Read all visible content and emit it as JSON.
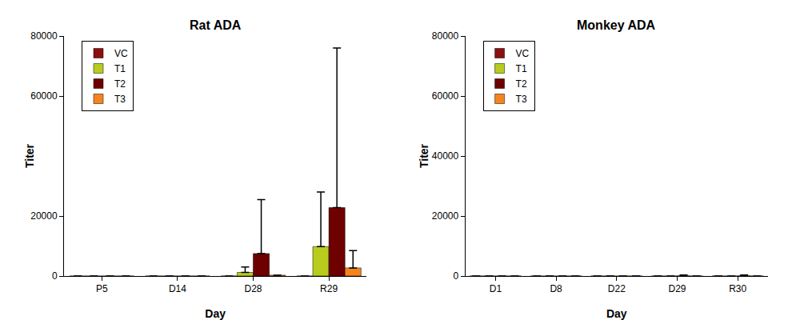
{
  "chart_data": [
    {
      "type": "bar",
      "title": "Rat ADA",
      "x_label": "Day",
      "y_label": "Titer",
      "categories": [
        "P5",
        "D14",
        "D28",
        "R29"
      ],
      "series": [
        {
          "name": "VC",
          "color": "#8b0f0f",
          "values": [
            0,
            0,
            0,
            0
          ],
          "errors": [
            0,
            0,
            0,
            0
          ]
        },
        {
          "name": "T1",
          "color": "#b8cc1e",
          "values": [
            0,
            0,
            1200,
            9800
          ],
          "errors": [
            0,
            0,
            1800,
            18200
          ]
        },
        {
          "name": "T2",
          "color": "#6e0000",
          "values": [
            0,
            0,
            7500,
            22800
          ],
          "errors": [
            0,
            0,
            18000,
            53200
          ]
        },
        {
          "name": "T3",
          "color": "#f5841f",
          "values": [
            0,
            0,
            300,
            2700
          ],
          "errors": [
            0,
            0,
            0,
            5800
          ]
        }
      ],
      "ylim": [
        0,
        80000
      ],
      "yticks": [
        0,
        20000,
        60000,
        80000
      ],
      "grid": false,
      "legend": "upper left"
    },
    {
      "type": "bar",
      "title": "Monkey ADA",
      "x_label": "Day",
      "y_label": "Titer",
      "categories": [
        "D1",
        "D8",
        "D22",
        "D29",
        "R30"
      ],
      "series": [
        {
          "name": "VC",
          "color": "#8b0f0f",
          "values": [
            0,
            0,
            0,
            0,
            0
          ],
          "errors": [
            0,
            0,
            0,
            0,
            0
          ]
        },
        {
          "name": "T1",
          "color": "#b8cc1e",
          "values": [
            0,
            0,
            0,
            0,
            0
          ],
          "errors": [
            0,
            0,
            0,
            0,
            0
          ]
        },
        {
          "name": "T2",
          "color": "#6e0000",
          "values": [
            0,
            0,
            0,
            50,
            50
          ],
          "errors": [
            0,
            0,
            0,
            300,
            300
          ]
        },
        {
          "name": "T3",
          "color": "#f5841f",
          "values": [
            0,
            0,
            0,
            0,
            0
          ],
          "errors": [
            0,
            0,
            0,
            0,
            0
          ]
        }
      ],
      "ylim": [
        0,
        80000
      ],
      "yticks": [
        0,
        20000,
        40000,
        60000,
        80000
      ],
      "grid": false,
      "legend": "upper left"
    }
  ]
}
